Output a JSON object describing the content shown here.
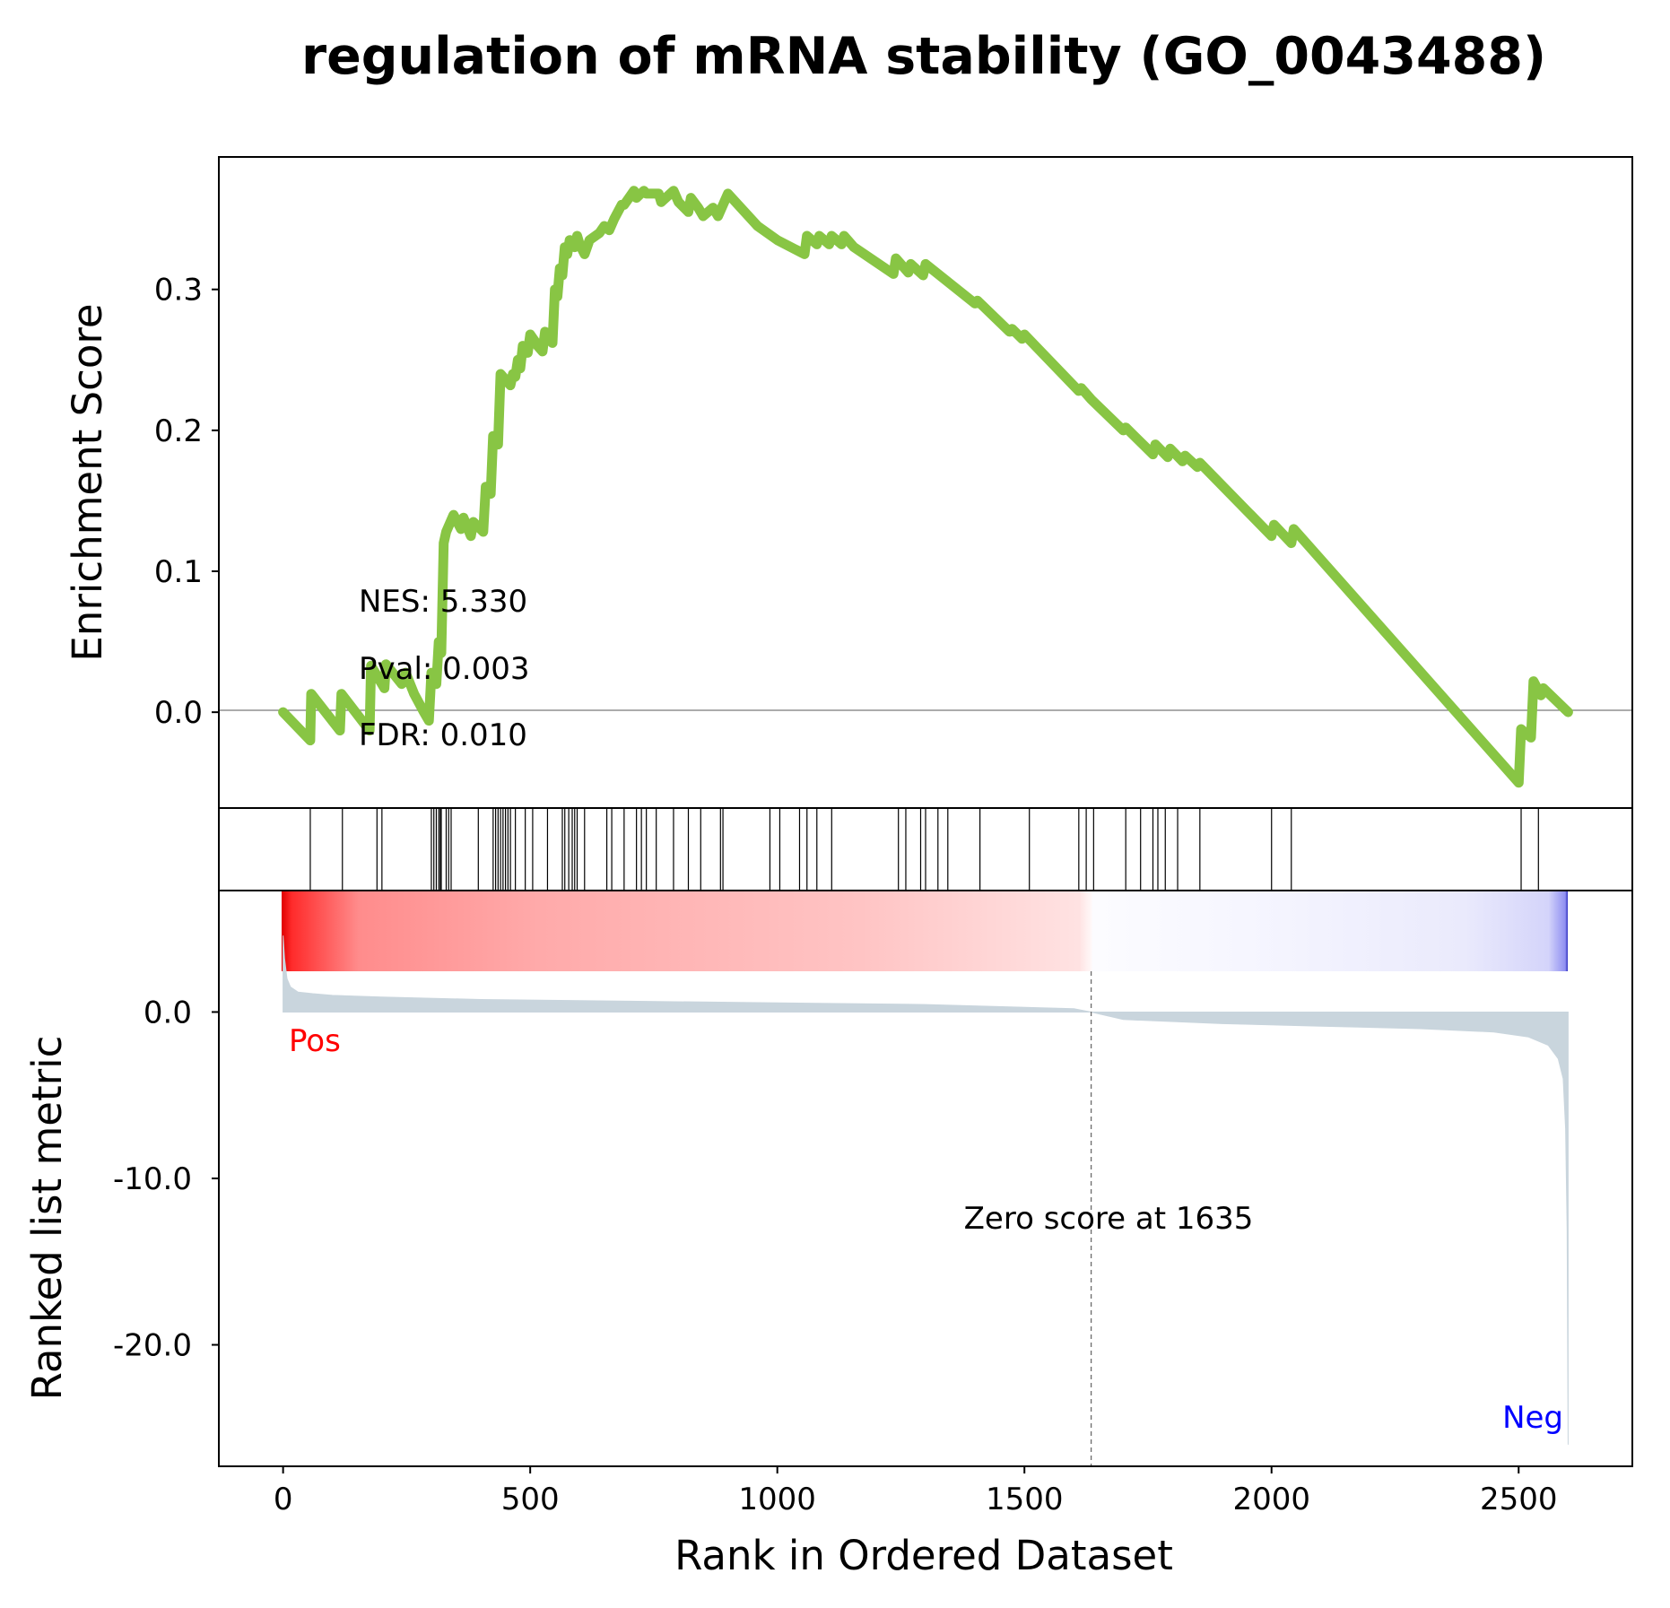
{
  "chart_data": {
    "type": "line",
    "title": "regulation of mRNA stability (GO_0043488)",
    "xlabel": "Rank in Ordered Dataset",
    "xlim": [
      -130,
      2730
    ],
    "x_ticks": [
      0,
      500,
      1000,
      1500,
      2000,
      2500
    ],
    "x_tick_labels": [
      "0",
      "500",
      "1000",
      "1500",
      "2000",
      "2500"
    ],
    "enrichment_panel": {
      "ylabel": "Enrichment Score",
      "ylim": [
        -0.068,
        0.394
      ],
      "y_ticks": [
        0.0,
        0.1,
        0.2,
        0.3
      ],
      "y_tick_labels": [
        "0.0",
        "0.1",
        "0.2",
        "0.3"
      ],
      "line_color": "#88c544",
      "zero_line": true,
      "stats": {
        "nes": "NES: 5.330",
        "pval": "Pval: 0.003",
        "fdr": "FDR: 0.010"
      },
      "running_es": {
        "x": [
          0,
          55,
          57,
          115,
          118,
          175,
          178,
          205,
          208,
          240,
          248,
          265,
          285,
          295,
          300,
          310,
          315,
          320,
          325,
          330,
          345,
          360,
          365,
          380,
          385,
          405,
          410,
          420,
          425,
          435,
          440,
          460,
          465,
          470,
          475,
          480,
          485,
          495,
          500,
          510,
          515,
          525,
          530,
          545,
          550,
          555,
          560,
          565,
          570,
          575,
          580,
          590,
          595,
          600,
          610,
          620,
          640,
          650,
          660,
          670,
          685,
          690,
          710,
          715,
          730,
          735,
          760,
          765,
          790,
          800,
          820,
          825,
          840,
          850,
          870,
          880,
          900,
          960,
          1000,
          1055,
          1060,
          1080,
          1085,
          1105,
          1110,
          1130,
          1135,
          1155,
          1235,
          1240,
          1265,
          1270,
          1295,
          1300,
          1400,
          1405,
          1470,
          1475,
          1495,
          1500,
          1610,
          1615,
          1635,
          1700,
          1705,
          1760,
          1765,
          1790,
          1795,
          1820,
          1825,
          1850,
          1855,
          2000,
          2005,
          2040,
          2045,
          2500,
          2505,
          2525,
          2530,
          2545,
          2550,
          2600
        ],
        "y": [
          0.0,
          -0.02,
          0.013,
          -0.013,
          0.013,
          -0.013,
          0.033,
          0.017,
          0.034,
          0.02,
          0.028,
          0.013,
          0.0,
          -0.006,
          0.028,
          0.02,
          0.05,
          0.042,
          0.12,
          0.128,
          0.14,
          0.13,
          0.138,
          0.125,
          0.135,
          0.128,
          0.16,
          0.155,
          0.196,
          0.19,
          0.24,
          0.232,
          0.24,
          0.238,
          0.25,
          0.244,
          0.26,
          0.255,
          0.268,
          0.263,
          0.26,
          0.256,
          0.27,
          0.262,
          0.3,
          0.295,
          0.315,
          0.31,
          0.33,
          0.325,
          0.335,
          0.33,
          0.338,
          0.332,
          0.325,
          0.335,
          0.34,
          0.345,
          0.342,
          0.35,
          0.36,
          0.36,
          0.37,
          0.365,
          0.37,
          0.368,
          0.368,
          0.362,
          0.37,
          0.362,
          0.355,
          0.365,
          0.358,
          0.352,
          0.358,
          0.352,
          0.368,
          0.345,
          0.335,
          0.325,
          0.338,
          0.332,
          0.338,
          0.332,
          0.338,
          0.332,
          0.338,
          0.33,
          0.311,
          0.322,
          0.312,
          0.318,
          0.31,
          0.318,
          0.29,
          0.292,
          0.27,
          0.272,
          0.265,
          0.268,
          0.228,
          0.23,
          0.222,
          0.2,
          0.202,
          0.183,
          0.19,
          0.181,
          0.187,
          0.178,
          0.182,
          0.174,
          0.177,
          0.125,
          0.133,
          0.12,
          0.13,
          -0.05,
          -0.012,
          -0.018,
          0.022,
          0.012,
          0.017,
          0.0
        ]
      }
    },
    "hits_panel": {
      "hit_ranks": [
        55,
        120,
        190,
        200,
        300,
        305,
        310,
        315,
        318,
        320,
        330,
        335,
        340,
        395,
        425,
        430,
        435,
        440,
        445,
        450,
        455,
        460,
        470,
        490,
        505,
        535,
        565,
        570,
        578,
        585,
        590,
        595,
        610,
        655,
        665,
        690,
        715,
        725,
        735,
        755,
        790,
        820,
        845,
        885,
        890,
        985,
        1005,
        1045,
        1060,
        1080,
        1110,
        1245,
        1260,
        1290,
        1300,
        1325,
        1345,
        1410,
        1510,
        1610,
        1625,
        1640,
        1705,
        1735,
        1760,
        1770,
        1785,
        1810,
        1855,
        2000,
        2040,
        2505,
        2540
      ]
    },
    "ranked_panel": {
      "ylabel": "Ranked list metric",
      "ylim": [
        -27.3,
        7.3
      ],
      "y_ticks": [
        0,
        -10,
        -20
      ],
      "y_tick_labels": [
        "0.0",
        "-10.0",
        "-20.0"
      ],
      "fill_color": "#c9d5dd",
      "pos_label": "Pos",
      "neg_label": "Neg",
      "pos_color": "#ff0000",
      "neg_color": "#0000ff",
      "zero_cross_rank": 1635,
      "zero_cross_label": "Zero score at 1635",
      "metric": {
        "x": [
          0,
          3,
          8,
          15,
          30,
          60,
          100,
          200,
          400,
          700,
          1000,
          1300,
          1600,
          1635,
          1700,
          1900,
          2100,
          2300,
          2450,
          2520,
          2560,
          2580,
          2590,
          2595,
          2598,
          2600
        ],
        "y": [
          4.6,
          3.2,
          2.0,
          1.5,
          1.2,
          1.1,
          1.0,
          0.9,
          0.75,
          0.65,
          0.55,
          0.45,
          0.2,
          0.0,
          -0.45,
          -0.7,
          -0.85,
          -1.0,
          -1.2,
          -1.5,
          -2.0,
          -2.8,
          -4.0,
          -7.0,
          -13.0,
          -26.0
        ]
      }
    },
    "colorbar": {
      "from_color": "#ff0000",
      "mid_color": "#ffffff",
      "to_color": "#0000ff"
    }
  }
}
